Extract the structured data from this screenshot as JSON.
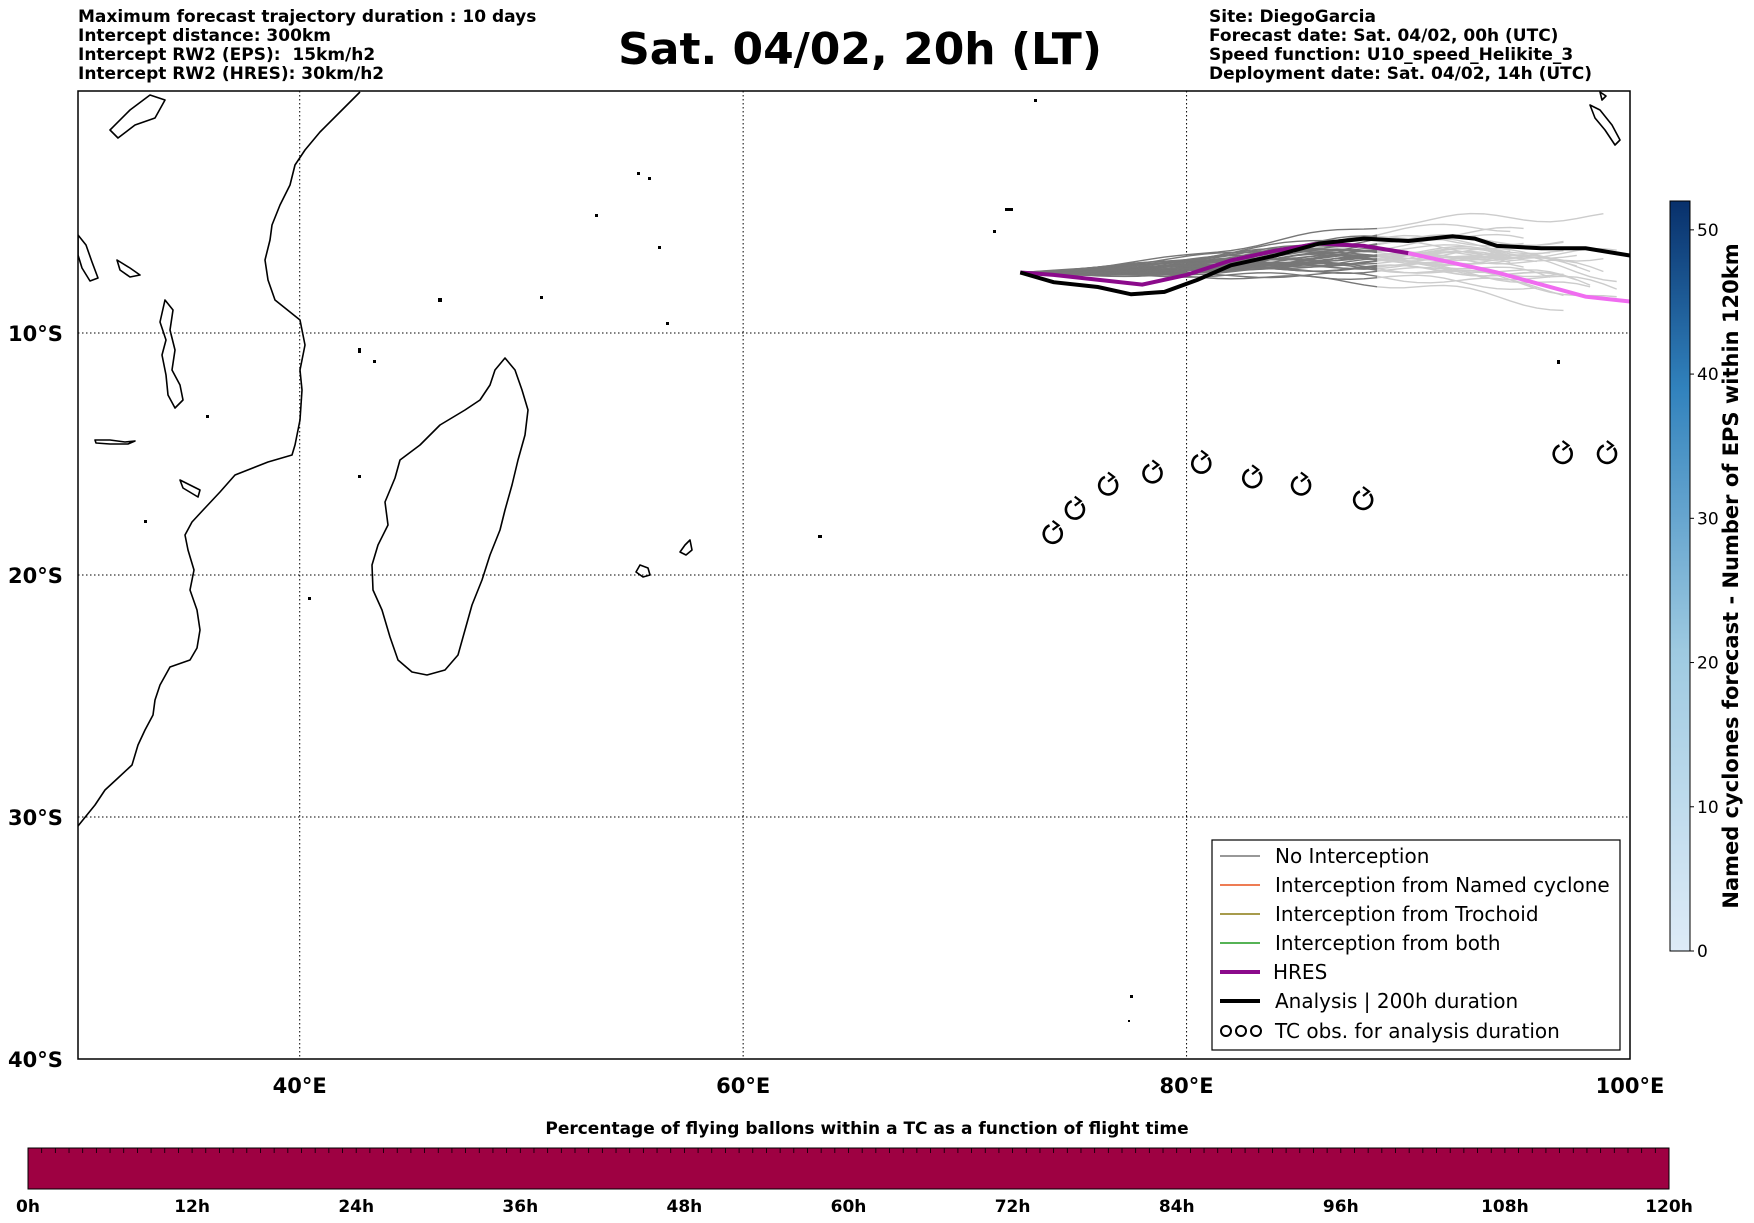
{
  "header_left": [
    "Maximum forecast trajectory duration : 10 days",
    "Intercept distance: 300km",
    "Intercept RW2 (EPS):  15km/h2",
    "Intercept RW2 (HRES): 30km/h2"
  ],
  "header_right": [
    "Site: DiegoGarcia",
    "Forecast date: Sat. 04/02, 00h (UTC)",
    "Speed function: U10_speed_Helikite_3",
    "Deployment date: Sat. 04/02, 14h (UTC)"
  ],
  "title": "Sat. 04/02, 20h (LT)",
  "map": {
    "lon_range": [
      30,
      100
    ],
    "lat_range": [
      -40,
      0
    ],
    "lon_ticks": [
      {
        "value": 40,
        "label": "40°E"
      },
      {
        "value": 60,
        "label": "60°E"
      },
      {
        "value": 80,
        "label": "80°E"
      },
      {
        "value": 100,
        "label": "100°E"
      }
    ],
    "lat_ticks": [
      {
        "value": -10,
        "label": "10°S"
      },
      {
        "value": -20,
        "label": "20°S"
      },
      {
        "value": -30,
        "label": "30°S"
      },
      {
        "value": -40,
        "label": "40°S"
      }
    ],
    "grid": "dotted",
    "colors": {
      "no_interception": "#777777",
      "named_cyclone": "#e8501c",
      "trochoid": "#8a7a10",
      "both": "#1f9a1f",
      "hres": "#8b0a8b",
      "hres_late": "#f06cf0",
      "analysis": "#000000",
      "eps_late": "#cccccc"
    }
  },
  "tracks": {
    "hres": [
      [
        72.5,
        -7.5
      ],
      [
        74,
        -7.6
      ],
      [
        76,
        -7.8
      ],
      [
        78,
        -8.0
      ],
      [
        80,
        -7.6
      ],
      [
        82,
        -7.0
      ],
      [
        84,
        -6.6
      ],
      [
        86,
        -6.3
      ],
      [
        88,
        -6.4
      ],
      [
        90,
        -6.7
      ],
      [
        92,
        -7.1
      ],
      [
        94,
        -7.5
      ],
      [
        96,
        -8.0
      ],
      [
        98,
        -8.5
      ],
      [
        100,
        -8.7
      ]
    ],
    "analysis": [
      [
        72.5,
        -7.5
      ],
      [
        74,
        -7.9
      ],
      [
        76,
        -8.1
      ],
      [
        77.5,
        -8.4
      ],
      [
        79,
        -8.3
      ],
      [
        80.5,
        -7.8
      ],
      [
        82,
        -7.2
      ],
      [
        84,
        -6.8
      ],
      [
        86,
        -6.3
      ],
      [
        88,
        -6.1
      ],
      [
        90,
        -6.2
      ],
      [
        92,
        -6.0
      ],
      [
        93,
        -6.1
      ],
      [
        94,
        -6.4
      ],
      [
        96,
        -6.5
      ],
      [
        98,
        -6.5
      ],
      [
        100,
        -6.8
      ]
    ]
  },
  "tc_obs": [
    [
      74,
      -18.3
    ],
    [
      75,
      -17.3
    ],
    [
      76.5,
      -16.3
    ],
    [
      78.5,
      -15.8
    ],
    [
      80.7,
      -15.4
    ],
    [
      83,
      -16.0
    ],
    [
      85.2,
      -16.3
    ],
    [
      88,
      -16.9
    ],
    [
      97,
      -15
    ],
    [
      99,
      -15
    ]
  ],
  "legend": [
    {
      "key": "no_interception",
      "label": "No Interception"
    },
    {
      "key": "named_cyclone",
      "label": "Interception from Named cyclone"
    },
    {
      "key": "trochoid",
      "label": "Interception from Trochoid"
    },
    {
      "key": "both",
      "label": "Interception from both"
    },
    {
      "key": "hres",
      "label": "HRES"
    },
    {
      "key": "analysis",
      "label": "Analysis | 200h duration"
    },
    {
      "key": "tc_obs",
      "label": "TC obs. for analysis duration"
    }
  ],
  "colorbar_right": {
    "title": "Named cyclones forecast - Number of EPS within 120km",
    "range": [
      0,
      52
    ],
    "ticks": [
      0,
      10,
      20,
      30,
      40,
      50
    ],
    "color_low": "#deebf7",
    "color_high": "#08306b"
  },
  "bottom_bar": {
    "title": "Percentage of flying ballons within a TC as a function of flight time",
    "fill_color": "#9e0142",
    "ticks": [
      "0h",
      "12h",
      "24h",
      "36h",
      "48h",
      "60h",
      "72h",
      "84h",
      "96h",
      "108h",
      "120h"
    ]
  }
}
